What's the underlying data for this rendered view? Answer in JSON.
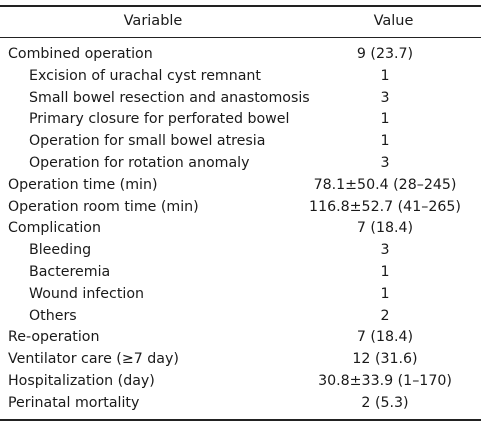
{
  "table": {
    "header": {
      "variable": "Variable",
      "value": "Value"
    },
    "rows": [
      {
        "label": "Combined operation",
        "value": "9 (23.7)",
        "indent": false
      },
      {
        "label": "Excision of urachal cyst remnant",
        "value": "1",
        "indent": true
      },
      {
        "label": "Small bowel resection and anastomosis",
        "value": "3",
        "indent": true
      },
      {
        "label": "Primary closure for perforated bowel",
        "value": "1",
        "indent": true
      },
      {
        "label": "Operation for small bowel atresia",
        "value": "1",
        "indent": true
      },
      {
        "label": "Operation for rotation anomaly",
        "value": "3",
        "indent": true
      },
      {
        "label": "Operation time (min)",
        "value": "78.1±50.4 (28–245)",
        "indent": false
      },
      {
        "label": "Operation room time (min)",
        "value": "116.8±52.7 (41–265)",
        "indent": false
      },
      {
        "label": "Complication",
        "value": "7 (18.4)",
        "indent": false
      },
      {
        "label": "Bleeding",
        "value": "3",
        "indent": true
      },
      {
        "label": "Bacteremia",
        "value": "1",
        "indent": true
      },
      {
        "label": "Wound infection",
        "value": "1",
        "indent": true
      },
      {
        "label": "Others",
        "value": "2",
        "indent": true
      },
      {
        "label": "Re-operation",
        "value": "7 (18.4)",
        "indent": false
      },
      {
        "label": "Ventilator care (≥7 day)",
        "value": "12 (31.6)",
        "indent": false
      },
      {
        "label": "Hospitalization (day)",
        "value": "30.8±33.9 (1–170)",
        "indent": false
      },
      {
        "label": "Perinatal mortality",
        "value": "2 (5.3)",
        "indent": false
      }
    ]
  }
}
